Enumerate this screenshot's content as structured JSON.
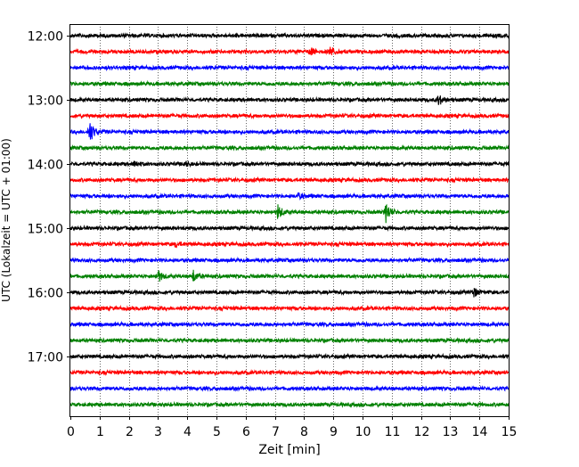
{
  "chart_data": {
    "type": "line",
    "xlabel": "Zeit  [min]",
    "ylabel": "UTC (Lokalzeit = UTC + 01:00)",
    "xlim": [
      0,
      15
    ],
    "x_ticks": [
      0,
      1,
      2,
      3,
      4,
      5,
      6,
      7,
      8,
      9,
      10,
      11,
      12,
      13,
      14,
      15
    ],
    "y_ticks": [
      "12:00",
      "13:00",
      "14:00",
      "15:00",
      "16:00",
      "17:00"
    ],
    "grid": "vertical dotted lines at each minute",
    "trace_interval_minutes": 15,
    "trace_start": "12:00",
    "trace_count": 24,
    "colors": [
      "#000000",
      "#ff0000",
      "#0000ff",
      "#008000"
    ],
    "series": [
      {
        "start": "12:00",
        "color": "#000000",
        "events": []
      },
      {
        "start": "12:15",
        "color": "#ff0000",
        "events": [
          {
            "t": 8.2,
            "amp": 0.35
          },
          {
            "t": 8.9,
            "amp": 0.45
          }
        ]
      },
      {
        "start": "12:30",
        "color": "#0000ff",
        "events": []
      },
      {
        "start": "12:45",
        "color": "#008000",
        "events": []
      },
      {
        "start": "13:00",
        "color": "#000000",
        "events": [
          {
            "t": 12.6,
            "amp": 0.45
          }
        ]
      },
      {
        "start": "13:15",
        "color": "#ff0000",
        "events": []
      },
      {
        "start": "13:30",
        "color": "#0000ff",
        "events": [
          {
            "t": 0.65,
            "amp": 1.0
          }
        ]
      },
      {
        "start": "13:45",
        "color": "#008000",
        "events": []
      },
      {
        "start": "14:00",
        "color": "#000000",
        "events": [
          {
            "t": 2.2,
            "amp": 0.25
          },
          {
            "t": 3.9,
            "amp": 0.2
          }
        ]
      },
      {
        "start": "14:15",
        "color": "#ff0000",
        "events": []
      },
      {
        "start": "14:30",
        "color": "#0000ff",
        "events": [
          {
            "t": 7.8,
            "amp": 0.2
          }
        ]
      },
      {
        "start": "14:45",
        "color": "#008000",
        "events": [
          {
            "t": 7.1,
            "amp": 0.6
          },
          {
            "t": 10.8,
            "amp": 0.85
          }
        ]
      },
      {
        "start": "15:00",
        "color": "#000000",
        "events": []
      },
      {
        "start": "15:15",
        "color": "#ff0000",
        "events": [
          {
            "t": 3.6,
            "amp": 0.2
          }
        ]
      },
      {
        "start": "15:30",
        "color": "#0000ff",
        "events": []
      },
      {
        "start": "15:45",
        "color": "#008000",
        "events": [
          {
            "t": 3.0,
            "amp": 0.5
          },
          {
            "t": 4.2,
            "amp": 0.45
          }
        ]
      },
      {
        "start": "16:00",
        "color": "#000000",
        "events": [
          {
            "t": 13.8,
            "amp": 0.4
          }
        ]
      },
      {
        "start": "16:15",
        "color": "#ff0000",
        "events": []
      },
      {
        "start": "16:30",
        "color": "#0000ff",
        "events": []
      },
      {
        "start": "16:45",
        "color": "#008000",
        "events": []
      },
      {
        "start": "17:00",
        "color": "#000000",
        "events": []
      },
      {
        "start": "17:15",
        "color": "#ff0000",
        "events": []
      },
      {
        "start": "17:30",
        "color": "#0000ff",
        "events": []
      },
      {
        "start": "17:45",
        "color": "#008000",
        "events": []
      }
    ]
  }
}
